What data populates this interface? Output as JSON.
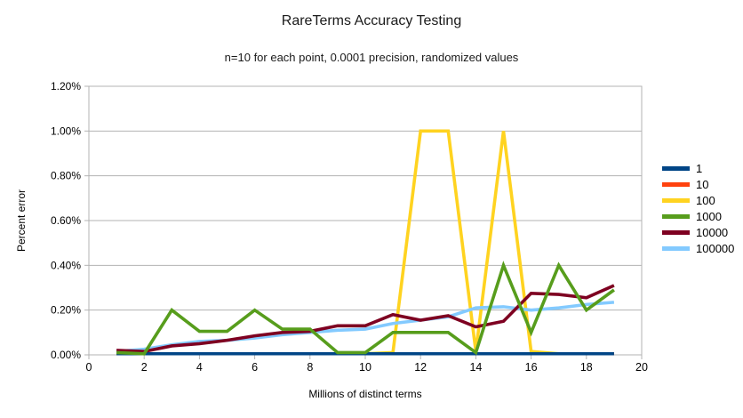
{
  "chart": {
    "title": "RareTerms Accuracy Testing",
    "subtitle": "n=10 for each point, 0.0001 precision, randomized values",
    "x_axis_title": "Millions of distinct terms",
    "y_axis_title": "Percent error"
  },
  "chart_data": {
    "type": "line",
    "title": "RareTerms Accuracy Testing",
    "subtitle": "n=10 for each point, 0.0001 precision, randomized values",
    "xlabel": "Millions of distinct terms",
    "ylabel": "Percent error",
    "xlim": [
      0,
      20
    ],
    "ylim": [
      0,
      1.2
    ],
    "x_ticks": [
      0,
      2,
      4,
      6,
      8,
      10,
      12,
      14,
      16,
      18,
      20
    ],
    "x_tick_labels": [
      "0",
      "2",
      "4",
      "6",
      "8",
      "10",
      "12",
      "14",
      "16",
      "18",
      "20"
    ],
    "y_ticks": [
      0,
      0.2,
      0.4,
      0.6,
      0.8,
      1.0,
      1.2
    ],
    "y_tick_labels": [
      "0.00%",
      "0.20%",
      "0.40%",
      "0.60%",
      "0.80%",
      "1.00%",
      "1.20%"
    ],
    "grid": "horizontal",
    "legend_position": "right",
    "value_unit": "percent",
    "x": [
      1,
      2,
      3,
      4,
      5,
      6,
      7,
      8,
      9,
      10,
      11,
      12,
      13,
      14,
      15,
      16,
      17,
      18,
      19
    ],
    "series": [
      {
        "name": "1",
        "color": "#004586",
        "values": [
          0.005,
          0.005,
          0.005,
          0.005,
          0.005,
          0.005,
          0.005,
          0.005,
          0.005,
          0.005,
          0.005,
          0.005,
          0.005,
          0.005,
          0.005,
          0.005,
          0.005,
          0.005,
          0.005
        ]
      },
      {
        "name": "10",
        "color": "#FF420E",
        "values": [
          0.005,
          0.005,
          0.005,
          0.005,
          0.005,
          0.005,
          0.005,
          0.005,
          0.005,
          0.005,
          0.005,
          0.005,
          0.005,
          0.005,
          0.005,
          0.005,
          0.005,
          0.005,
          0.005
        ]
      },
      {
        "name": "100",
        "color": "#FFD320",
        "values": [
          0.005,
          0.005,
          0.005,
          0.005,
          0.005,
          0.005,
          0.005,
          0.005,
          0.005,
          0.005,
          0.01,
          1.0,
          1.0,
          0.015,
          1.0,
          0.015,
          0.005,
          0.005,
          0.005
        ]
      },
      {
        "name": "1000",
        "color": "#579D1C",
        "values": [
          0.01,
          0.005,
          0.2,
          0.105,
          0.105,
          0.2,
          0.115,
          0.115,
          0.01,
          0.01,
          0.1,
          0.1,
          0.1,
          0.01,
          0.4,
          0.1,
          0.4,
          0.2,
          0.29
        ]
      },
      {
        "name": "10000",
        "color": "#7E0021",
        "values": [
          0.02,
          0.015,
          0.04,
          0.05,
          0.065,
          0.085,
          0.1,
          0.105,
          0.13,
          0.13,
          0.18,
          0.155,
          0.175,
          0.125,
          0.15,
          0.275,
          0.27,
          0.255,
          0.31
        ]
      },
      {
        "name": "100000",
        "color": "#83CAFF",
        "values": [
          0.015,
          0.025,
          0.045,
          0.06,
          0.065,
          0.075,
          0.09,
          0.1,
          0.11,
          0.115,
          0.14,
          0.155,
          0.17,
          0.21,
          0.215,
          0.2,
          0.21,
          0.225,
          0.235
        ]
      }
    ]
  }
}
